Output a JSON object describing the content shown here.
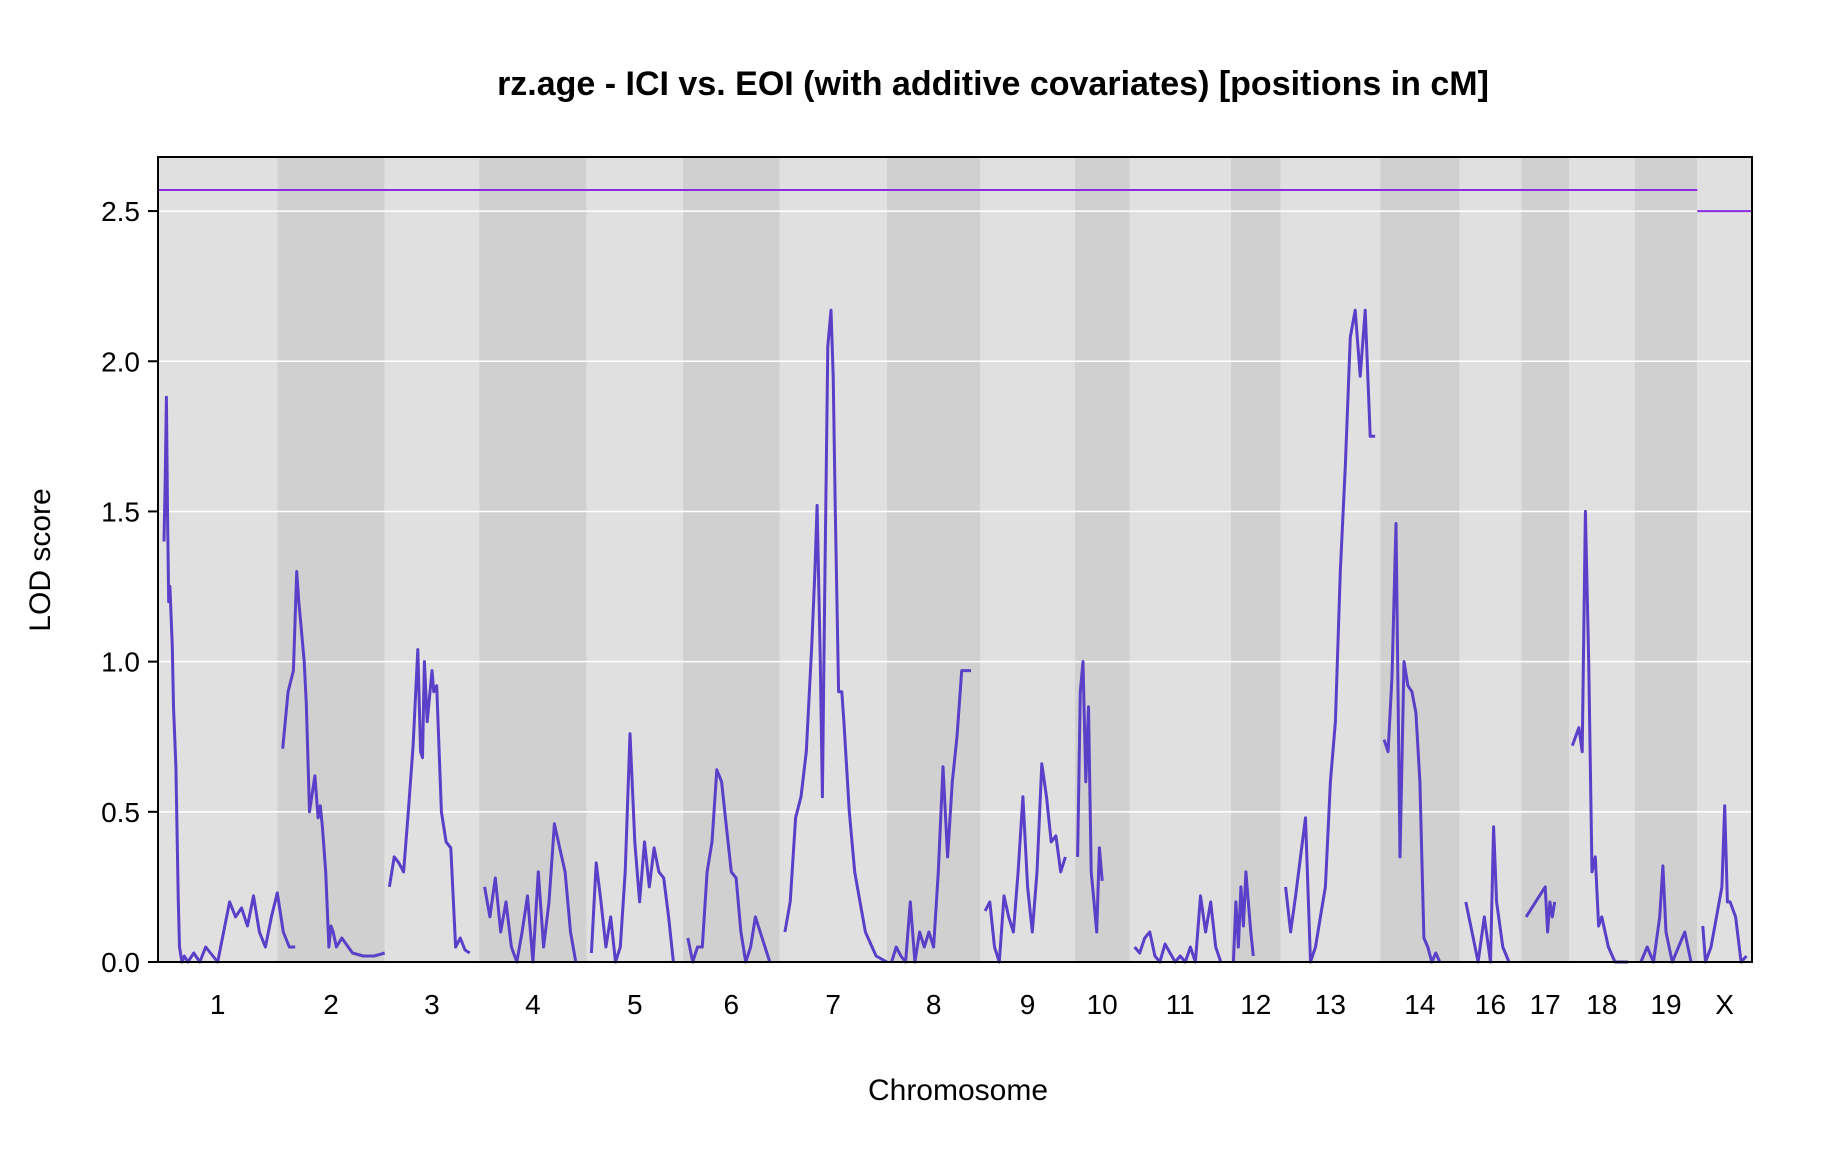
{
  "chart_data": {
    "type": "line",
    "title": "rz.age - ICI vs. EOI (with additive covariates) [positions in cM]",
    "xlabel": "Chromosome",
    "ylabel": "LOD score",
    "ylim": [
      0,
      2.68
    ],
    "yticks": [
      "0.0",
      "0.5",
      "1.0",
      "1.5",
      "2.0",
      "2.5"
    ],
    "grid": true,
    "colors": {
      "line": "#5a3fc8",
      "threshold": "#8a2be2",
      "band_light": "#e0e0e0",
      "band_dark": "#d0d0d0",
      "gridline": "#ffffff"
    },
    "chromosomes": [
      {
        "label": "1",
        "length": 1.2
      },
      {
        "label": "2",
        "length": 1.08
      },
      {
        "label": "3",
        "length": 0.95
      },
      {
        "label": "4",
        "length": 1.08
      },
      {
        "label": "5",
        "length": 0.97
      },
      {
        "label": "6",
        "length": 0.97
      },
      {
        "label": "7",
        "length": 1.08
      },
      {
        "label": "8",
        "length": 0.94
      },
      {
        "label": "9",
        "length": 0.95
      },
      {
        "label": "10",
        "length": 0.55
      },
      {
        "label": "11",
        "length": 1.02
      },
      {
        "label": "12",
        "length": 0.5
      },
      {
        "label": "13",
        "length": 1.0
      },
      {
        "label": "14",
        "length": 0.8
      },
      {
        "label": "16",
        "length": 0.62
      },
      {
        "label": "17",
        "length": 0.48
      },
      {
        "label": "18",
        "length": 0.66
      },
      {
        "label": "19",
        "length": 0.63
      },
      {
        "label": "X",
        "length": 0.55
      }
    ],
    "thresholds": [
      {
        "chrom_range": [
          "1",
          "19"
        ],
        "value": 2.57
      },
      {
        "chrom_range": [
          "X",
          "X"
        ],
        "value": 2.5
      }
    ],
    "series": [
      {
        "segments": [
          {
            "chrom": "1",
            "x": [
              0.05,
              0.06,
              0.07,
              0.08,
              0.09,
              0.1,
              0.12,
              0.13,
              0.15,
              0.17,
              0.18,
              0.2,
              0.22,
              0.25,
              0.3,
              0.35,
              0.4,
              0.5,
              0.55,
              0.6,
              0.65,
              0.7,
              0.75,
              0.8,
              0.85,
              0.9,
              0.95,
              1.0,
              1.05,
              1.1,
              1.15
            ],
            "y": [
              1.4,
              1.6,
              1.88,
              1.5,
              1.2,
              1.25,
              1.05,
              0.85,
              0.65,
              0.2,
              0.05,
              0.0,
              0.02,
              0.0,
              0.03,
              0.0,
              0.05,
              0.0,
              0.1,
              0.2,
              0.15,
              0.18,
              0.12,
              0.22,
              0.1,
              0.05,
              0.15,
              0.23,
              0.1,
              0.05,
              0.05
            ]
          },
          {
            "chrom": "2",
            "x": [
              0.05,
              0.1,
              0.15,
              0.18,
              0.2,
              0.22,
              0.25,
              0.27,
              0.3,
              0.35,
              0.38,
              0.4,
              0.42,
              0.45,
              0.48,
              0.5,
              0.52,
              0.55,
              0.6,
              0.7,
              0.8,
              0.9,
              1.0
            ],
            "y": [
              0.71,
              0.9,
              0.97,
              1.3,
              1.2,
              1.12,
              1.0,
              0.86,
              0.5,
              0.62,
              0.48,
              0.52,
              0.45,
              0.3,
              0.05,
              0.12,
              0.1,
              0.05,
              0.08,
              0.03,
              0.02,
              0.02,
              0.03
            ]
          },
          {
            "chrom": "3",
            "x": [
              0.05,
              0.1,
              0.15,
              0.2,
              0.25,
              0.3,
              0.35,
              0.38,
              0.4,
              0.42,
              0.45,
              0.5,
              0.52,
              0.55,
              0.6,
              0.65,
              0.7,
              0.75,
              0.8,
              0.85,
              0.9
            ],
            "y": [
              0.25,
              0.35,
              0.33,
              0.3,
              0.5,
              0.72,
              1.04,
              0.7,
              0.68,
              1.0,
              0.8,
              0.97,
              0.9,
              0.92,
              0.5,
              0.4,
              0.38,
              0.05,
              0.08,
              0.04,
              0.03
            ]
          },
          {
            "chrom": "4",
            "x": [
              0.05,
              0.1,
              0.15,
              0.2,
              0.25,
              0.3,
              0.35,
              0.4,
              0.45,
              0.5,
              0.55,
              0.6,
              0.65,
              0.7,
              0.75,
              0.8,
              0.85,
              0.9
            ],
            "y": [
              0.25,
              0.15,
              0.28,
              0.1,
              0.2,
              0.05,
              0.0,
              0.1,
              0.22,
              0.0,
              0.3,
              0.05,
              0.2,
              0.46,
              0.38,
              0.3,
              0.1,
              0.0
            ]
          },
          {
            "chrom": "5",
            "x": [
              0.05,
              0.1,
              0.15,
              0.2,
              0.25,
              0.3,
              0.35,
              0.4,
              0.45,
              0.5,
              0.55,
              0.6,
              0.65,
              0.7,
              0.75,
              0.8,
              0.85,
              0.9
            ],
            "y": [
              0.03,
              0.33,
              0.2,
              0.05,
              0.15,
              0.0,
              0.05,
              0.3,
              0.76,
              0.4,
              0.2,
              0.4,
              0.25,
              0.38,
              0.3,
              0.28,
              0.15,
              0.0
            ]
          },
          {
            "chrom": "6",
            "x": [
              0.05,
              0.1,
              0.15,
              0.2,
              0.25,
              0.3,
              0.35,
              0.4,
              0.45,
              0.5,
              0.55,
              0.6,
              0.65,
              0.7,
              0.75,
              0.8,
              0.85,
              0.9
            ],
            "y": [
              0.08,
              0.0,
              0.05,
              0.05,
              0.3,
              0.4,
              0.64,
              0.6,
              0.45,
              0.3,
              0.28,
              0.1,
              0.0,
              0.05,
              0.15,
              0.1,
              0.05,
              0.0
            ]
          },
          {
            "chrom": "7",
            "x": [
              0.05,
              0.1,
              0.15,
              0.2,
              0.25,
              0.3,
              0.33,
              0.35,
              0.38,
              0.4,
              0.42,
              0.45,
              0.48,
              0.5,
              0.52,
              0.55,
              0.58,
              0.6,
              0.65,
              0.7,
              0.75,
              0.8,
              0.9,
              1.0
            ],
            "y": [
              0.1,
              0.2,
              0.48,
              0.55,
              0.7,
              1.05,
              1.3,
              1.52,
              1.0,
              0.55,
              1.2,
              2.05,
              2.17,
              1.95,
              1.5,
              0.9,
              0.9,
              0.8,
              0.5,
              0.3,
              0.2,
              0.1,
              0.02,
              0.0
            ]
          },
          {
            "chrom": "8",
            "x": [
              0.05,
              0.1,
              0.15,
              0.2,
              0.25,
              0.3,
              0.35,
              0.4,
              0.45,
              0.5,
              0.55,
              0.6,
              0.65,
              0.7,
              0.75,
              0.8,
              0.85,
              0.9
            ],
            "y": [
              0.0,
              0.05,
              0.02,
              0.0,
              0.2,
              0.0,
              0.1,
              0.05,
              0.1,
              0.05,
              0.3,
              0.65,
              0.35,
              0.6,
              0.75,
              0.97,
              0.97,
              0.97
            ]
          },
          {
            "chrom": "9",
            "x": [
              0.05,
              0.1,
              0.15,
              0.2,
              0.25,
              0.3,
              0.35,
              0.4,
              0.45,
              0.5,
              0.55,
              0.6,
              0.65,
              0.7,
              0.75,
              0.8,
              0.85,
              0.9
            ],
            "y": [
              0.17,
              0.2,
              0.05,
              0.0,
              0.22,
              0.15,
              0.1,
              0.3,
              0.55,
              0.25,
              0.1,
              0.3,
              0.66,
              0.55,
              0.4,
              0.42,
              0.3,
              0.35
            ]
          },
          {
            "chrom": "10",
            "x": [
              0.05,
              0.1,
              0.15,
              0.2,
              0.25,
              0.3,
              0.35,
              0.4,
              0.45,
              0.5
            ],
            "y": [
              0.35,
              0.9,
              1.0,
              0.6,
              0.85,
              0.3,
              0.2,
              0.1,
              0.38,
              0.27
            ]
          },
          {
            "chrom": "11",
            "x": [
              0.05,
              0.1,
              0.15,
              0.2,
              0.25,
              0.3,
              0.35,
              0.4,
              0.45,
              0.5,
              0.55,
              0.6,
              0.65,
              0.7,
              0.75,
              0.8,
              0.85,
              0.9
            ],
            "y": [
              0.05,
              0.03,
              0.08,
              0.1,
              0.02,
              0.0,
              0.06,
              0.03,
              0.0,
              0.02,
              0.0,
              0.05,
              0.0,
              0.22,
              0.1,
              0.2,
              0.05,
              0.0
            ]
          },
          {
            "chrom": "12",
            "x": [
              0.05,
              0.1,
              0.15,
              0.2,
              0.25,
              0.3,
              0.35,
              0.4,
              0.45
            ],
            "y": [
              0.0,
              0.2,
              0.05,
              0.25,
              0.12,
              0.3,
              0.2,
              0.1,
              0.02
            ]
          },
          {
            "chrom": "13",
            "x": [
              0.05,
              0.1,
              0.15,
              0.2,
              0.25,
              0.3,
              0.35,
              0.4,
              0.45,
              0.5,
              0.55,
              0.6,
              0.65,
              0.7,
              0.75,
              0.8,
              0.85,
              0.9,
              0.95
            ],
            "y": [
              0.25,
              0.1,
              0.22,
              0.35,
              0.48,
              0.0,
              0.05,
              0.15,
              0.25,
              0.6,
              0.8,
              1.3,
              1.65,
              2.08,
              2.17,
              1.95,
              2.17,
              1.75,
              1.75
            ]
          },
          {
            "chrom": "14",
            "x": [
              0.05,
              0.1,
              0.15,
              0.2,
              0.25,
              0.3,
              0.35,
              0.4,
              0.45,
              0.5,
              0.55,
              0.6,
              0.65,
              0.7,
              0.75
            ],
            "y": [
              0.74,
              0.7,
              0.95,
              1.46,
              0.35,
              1.0,
              0.92,
              0.9,
              0.83,
              0.6,
              0.08,
              0.05,
              0.0,
              0.03,
              0.0
            ]
          },
          {
            "chrom": "16",
            "x": [
              0.1,
              0.2,
              0.3,
              0.4,
              0.5,
              0.55,
              0.6,
              0.7,
              0.8
            ],
            "y": [
              0.2,
              0.1,
              0.0,
              0.15,
              0.0,
              0.45,
              0.2,
              0.05,
              0.0
            ]
          },
          {
            "chrom": "17",
            "x": [
              0.1,
              0.3,
              0.5,
              0.55,
              0.6,
              0.65,
              0.7
            ],
            "y": [
              0.15,
              0.2,
              0.25,
              0.1,
              0.2,
              0.15,
              0.2
            ]
          },
          {
            "chrom": "18",
            "x": [
              0.05,
              0.1,
              0.15,
              0.2,
              0.25,
              0.3,
              0.35,
              0.4,
              0.45,
              0.5,
              0.6,
              0.7,
              0.8,
              0.9
            ],
            "y": [
              0.72,
              0.75,
              0.78,
              0.7,
              1.5,
              1.0,
              0.3,
              0.35,
              0.12,
              0.15,
              0.05,
              0.0,
              0.0,
              0.0
            ]
          },
          {
            "chrom": "19",
            "x": [
              0.1,
              0.2,
              0.3,
              0.4,
              0.45,
              0.5,
              0.55,
              0.6,
              0.7,
              0.8,
              0.9
            ],
            "y": [
              0.0,
              0.05,
              0.0,
              0.15,
              0.32,
              0.1,
              0.05,
              0.0,
              0.05,
              0.1,
              0.0
            ]
          },
          {
            "chrom": "X",
            "x": [
              0.1,
              0.15,
              0.25,
              0.35,
              0.45,
              0.5,
              0.55,
              0.6,
              0.7,
              0.8,
              0.9
            ],
            "y": [
              0.12,
              0.0,
              0.05,
              0.15,
              0.25,
              0.52,
              0.2,
              0.2,
              0.15,
              0.0,
              0.02
            ]
          }
        ]
      }
    ]
  }
}
